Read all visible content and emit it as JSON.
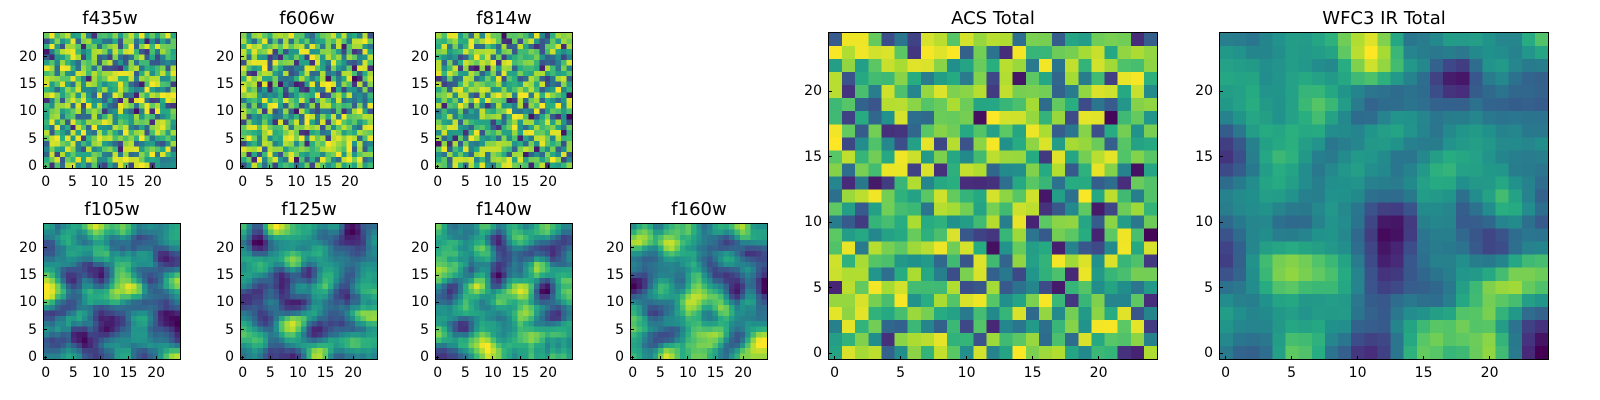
{
  "chart_data": [
    {
      "type": "heatmap",
      "title": "f435w",
      "group": "ACS",
      "xlim": [
        -0.5,
        24.5
      ],
      "ylim": [
        -0.5,
        24.5
      ],
      "x_ticks": [
        "0",
        "5",
        "10",
        "15",
        "20"
      ],
      "y_ticks": [
        "0",
        "5",
        "10",
        "15",
        "20"
      ],
      "grid": false,
      "pattern": "noise"
    },
    {
      "type": "heatmap",
      "title": "f606w",
      "group": "ACS",
      "xlim": [
        -0.5,
        24.5
      ],
      "ylim": [
        -0.5,
        24.5
      ],
      "x_ticks": [
        "0",
        "5",
        "10",
        "15",
        "20"
      ],
      "y_ticks": [
        "0",
        "5",
        "10",
        "15",
        "20"
      ],
      "grid": false,
      "pattern": "noise"
    },
    {
      "type": "heatmap",
      "title": "f814w",
      "group": "ACS",
      "xlim": [
        -0.5,
        24.5
      ],
      "ylim": [
        -0.5,
        24.5
      ],
      "x_ticks": [
        "0",
        "5",
        "10",
        "15",
        "20"
      ],
      "y_ticks": [
        "0",
        "5",
        "10",
        "15",
        "20"
      ],
      "grid": false,
      "pattern": "noise"
    },
    {
      "type": "heatmap",
      "title": "f105w",
      "group": "WFC3 IR",
      "xlim": [
        -0.5,
        24.5
      ],
      "ylim": [
        -0.5,
        24.5
      ],
      "x_ticks": [
        "0",
        "5",
        "10",
        "15",
        "20"
      ],
      "y_ticks": [
        "0",
        "5",
        "10",
        "15",
        "20"
      ],
      "grid": false,
      "pattern": "smooth"
    },
    {
      "type": "heatmap",
      "title": "f125w",
      "group": "WFC3 IR",
      "xlim": [
        -0.5,
        24.5
      ],
      "ylim": [
        -0.5,
        24.5
      ],
      "x_ticks": [
        "0",
        "5",
        "10",
        "15",
        "20"
      ],
      "y_ticks": [
        "0",
        "5",
        "10",
        "15",
        "20"
      ],
      "grid": false,
      "pattern": "smooth"
    },
    {
      "type": "heatmap",
      "title": "f140w",
      "group": "WFC3 IR",
      "xlim": [
        -0.5,
        24.5
      ],
      "ylim": [
        -0.5,
        24.5
      ],
      "x_ticks": [
        "0",
        "5",
        "10",
        "15",
        "20"
      ],
      "y_ticks": [
        "0",
        "5",
        "10",
        "15",
        "20"
      ],
      "grid": false,
      "pattern": "smooth"
    },
    {
      "type": "heatmap",
      "title": "f160w",
      "group": "WFC3 IR",
      "xlim": [
        -0.5,
        24.5
      ],
      "ylim": [
        -0.5,
        24.5
      ],
      "x_ticks": [
        "0",
        "5",
        "10",
        "15",
        "20"
      ],
      "y_ticks": [
        "0",
        "5",
        "10",
        "15",
        "20"
      ],
      "grid": false,
      "pattern": "smooth"
    },
    {
      "type": "heatmap",
      "title": "ACS Total",
      "group": "ACS",
      "xlim": [
        -0.5,
        24.5
      ],
      "ylim": [
        -0.5,
        24.5
      ],
      "x_ticks": [
        "0",
        "5",
        "10",
        "15",
        "20"
      ],
      "y_ticks": [
        "0",
        "5",
        "10",
        "15",
        "20"
      ],
      "grid": false,
      "pattern": "noise"
    },
    {
      "type": "heatmap",
      "title": "WFC3 IR Total",
      "group": "WFC3 IR",
      "xlim": [
        -0.5,
        24.5
      ],
      "ylim": [
        -0.5,
        24.5
      ],
      "x_ticks": [
        "0",
        "5",
        "10",
        "15",
        "20"
      ],
      "y_ticks": [
        "0",
        "5",
        "10",
        "15",
        "20"
      ],
      "grid": false,
      "pattern": "smooth"
    }
  ],
  "colormap": {
    "name": "viridis",
    "low": "#440154",
    "mid": "#21918c",
    "high": "#fde725"
  }
}
